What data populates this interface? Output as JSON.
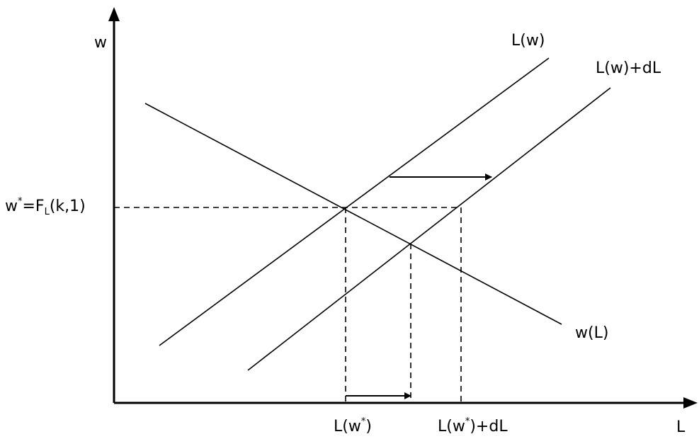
{
  "axes": {
    "y_label": "w",
    "x_label": "L"
  },
  "curves": {
    "supply": "L(w)",
    "supply_shifted": "L(w)+dL",
    "demand": "w(L)"
  },
  "y_marker": {
    "prefix": "w",
    "sup": "*",
    "mid": "=F",
    "sub": "L",
    "suffix": "(k,1)"
  },
  "x_markers": {
    "first": {
      "prefix": "L(w",
      "sup": "*",
      "suffix": ")"
    },
    "second": {
      "prefix": "L(w",
      "sup": "*",
      "suffix": ")+dL"
    }
  },
  "colors": {
    "line": "#000000",
    "background": "#ffffff"
  }
}
